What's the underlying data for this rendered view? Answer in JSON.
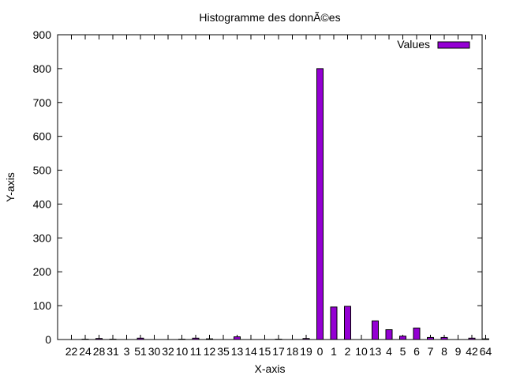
{
  "chart_data": {
    "type": "bar",
    "title": "Histogramme des donnÃ©es",
    "xlabel": "X-axis",
    "ylabel": "Y-axis",
    "ylim": [
      0,
      900
    ],
    "yticks": [
      "0",
      "100",
      "200",
      "300",
      "400",
      "500",
      "600",
      "700",
      "800",
      "900"
    ],
    "grid": false,
    "legend_position": "top-right",
    "categories": [
      "22",
      "24",
      "28",
      "31",
      "3",
      "51",
      "30",
      "32",
      "10",
      "11",
      "12",
      "35",
      "13",
      "14",
      "15",
      "17",
      "18",
      "19",
      "0",
      "1",
      "2",
      "10",
      "13",
      "4",
      "5",
      "6",
      "7",
      "8",
      "9",
      "42",
      "64"
    ],
    "series": [
      {
        "name": "Values",
        "color": "#9400d3",
        "values": [
          0,
          1,
          3,
          1,
          0,
          4,
          0,
          0,
          1,
          4,
          2,
          0,
          8,
          0,
          0,
          1,
          0,
          3,
          800,
          96,
          98,
          0,
          55,
          29,
          10,
          34,
          6,
          6,
          0,
          4,
          2
        ]
      }
    ]
  }
}
